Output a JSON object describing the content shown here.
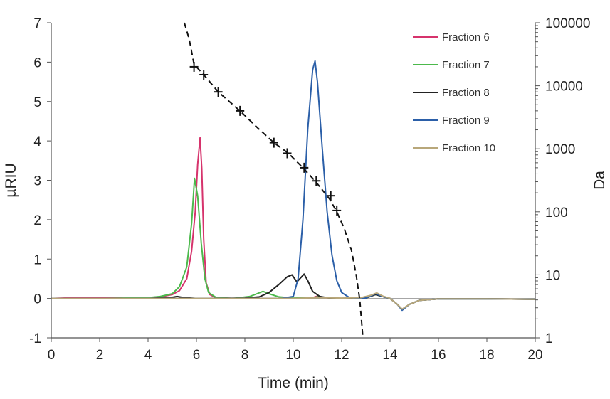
{
  "chart_data": {
    "type": "line",
    "xlabel": "Time (min)",
    "ylabel": "µRIU",
    "y2label": "Da",
    "xlim": [
      0,
      20
    ],
    "ylim": [
      -1,
      7
    ],
    "y2lim": [
      1,
      100000
    ],
    "y2scale": "log",
    "xticks": [
      "0",
      "2",
      "4",
      "6",
      "8",
      "10",
      "12",
      "14",
      "16",
      "18",
      "20"
    ],
    "yticks": [
      "-1",
      "0",
      "1",
      "2",
      "3",
      "4",
      "5",
      "6",
      "7"
    ],
    "y2ticks": [
      "1",
      "10",
      "100",
      "1000",
      "10000",
      "100000"
    ],
    "grid": false,
    "legend_position": "top-right",
    "series": [
      {
        "name": "Fraction 6",
        "color": "#d6336c",
        "points": [
          [
            0,
            0.0
          ],
          [
            1,
            0.02
          ],
          [
            2,
            0.03
          ],
          [
            3,
            0.01
          ],
          [
            4,
            0.02
          ],
          [
            4.5,
            0.04
          ],
          [
            5,
            0.1
          ],
          [
            5.3,
            0.2
          ],
          [
            5.6,
            0.5
          ],
          [
            5.8,
            1.2
          ],
          [
            5.95,
            2.2
          ],
          [
            6.05,
            3.4
          ],
          [
            6.15,
            4.08
          ],
          [
            6.22,
            3.3
          ],
          [
            6.3,
            1.5
          ],
          [
            6.4,
            0.4
          ],
          [
            6.55,
            0.1
          ],
          [
            6.8,
            0.02
          ],
          [
            7.5,
            0.0
          ],
          [
            9,
            0.0
          ],
          [
            10,
            0.0
          ],
          [
            10.8,
            0.02
          ],
          [
            11,
            0.06
          ],
          [
            11.3,
            0.02
          ],
          [
            12,
            0.0
          ],
          [
            13,
            0.01
          ],
          [
            13.4,
            0.1
          ],
          [
            13.7,
            0.05
          ],
          [
            14,
            0.0
          ],
          [
            14.3,
            -0.15
          ],
          [
            14.5,
            -0.28
          ],
          [
            14.8,
            -0.15
          ],
          [
            15.2,
            -0.05
          ],
          [
            16,
            -0.01
          ],
          [
            18,
            -0.01
          ],
          [
            20,
            -0.02
          ]
        ]
      },
      {
        "name": "Fraction 7",
        "color": "#4cb94c",
        "points": [
          [
            0,
            0.0
          ],
          [
            2,
            0.0
          ],
          [
            4,
            0.02
          ],
          [
            4.5,
            0.05
          ],
          [
            5,
            0.12
          ],
          [
            5.3,
            0.3
          ],
          [
            5.6,
            0.8
          ],
          [
            5.8,
            1.9
          ],
          [
            5.92,
            3.05
          ],
          [
            6.05,
            2.6
          ],
          [
            6.2,
            1.4
          ],
          [
            6.35,
            0.5
          ],
          [
            6.5,
            0.15
          ],
          [
            6.8,
            0.03
          ],
          [
            7.5,
            0.0
          ],
          [
            8.2,
            0.05
          ],
          [
            8.5,
            0.12
          ],
          [
            8.75,
            0.18
          ],
          [
            9.0,
            0.12
          ],
          [
            9.4,
            0.04
          ],
          [
            10,
            0.01
          ],
          [
            10.8,
            0.02
          ],
          [
            11,
            0.04
          ],
          [
            11.4,
            0.02
          ],
          [
            12,
            0.0
          ],
          [
            13,
            0.01
          ],
          [
            13.4,
            0.1
          ],
          [
            13.7,
            0.05
          ],
          [
            14,
            0.0
          ],
          [
            14.3,
            -0.15
          ],
          [
            14.5,
            -0.28
          ],
          [
            14.8,
            -0.15
          ],
          [
            15.2,
            -0.05
          ],
          [
            16,
            -0.01
          ],
          [
            18,
            -0.01
          ],
          [
            20,
            -0.02
          ]
        ]
      },
      {
        "name": "Fraction 8",
        "color": "#222222",
        "points": [
          [
            0,
            0.0
          ],
          [
            2,
            0.0
          ],
          [
            4,
            0.0
          ],
          [
            5,
            0.03
          ],
          [
            5.2,
            0.05
          ],
          [
            5.5,
            0.02
          ],
          [
            6,
            0.0
          ],
          [
            8,
            0.01
          ],
          [
            8.6,
            0.04
          ],
          [
            9.0,
            0.15
          ],
          [
            9.4,
            0.35
          ],
          [
            9.75,
            0.55
          ],
          [
            9.95,
            0.6
          ],
          [
            10.15,
            0.42
          ],
          [
            10.3,
            0.52
          ],
          [
            10.45,
            0.62
          ],
          [
            10.6,
            0.45
          ],
          [
            10.8,
            0.18
          ],
          [
            11.1,
            0.05
          ],
          [
            11.5,
            0.01
          ],
          [
            12,
            0.0
          ],
          [
            13,
            0.01
          ],
          [
            13.4,
            0.1
          ],
          [
            13.7,
            0.05
          ],
          [
            14,
            0.0
          ],
          [
            14.3,
            -0.15
          ],
          [
            14.5,
            -0.28
          ],
          [
            14.8,
            -0.15
          ],
          [
            15.2,
            -0.05
          ],
          [
            16,
            -0.01
          ],
          [
            18,
            -0.01
          ],
          [
            20,
            -0.02
          ]
        ]
      },
      {
        "name": "Fraction 9",
        "color": "#2b5fa8",
        "points": [
          [
            0,
            0.0
          ],
          [
            2,
            0.0
          ],
          [
            4,
            0.0
          ],
          [
            6,
            0.0
          ],
          [
            8,
            0.0
          ],
          [
            9.5,
            0.0
          ],
          [
            10.0,
            0.05
          ],
          [
            10.2,
            0.5
          ],
          [
            10.4,
            2.0
          ],
          [
            10.6,
            4.3
          ],
          [
            10.8,
            5.8
          ],
          [
            10.9,
            6.03
          ],
          [
            11.0,
            5.5
          ],
          [
            11.2,
            3.8
          ],
          [
            11.4,
            2.2
          ],
          [
            11.6,
            1.1
          ],
          [
            11.8,
            0.45
          ],
          [
            12.0,
            0.15
          ],
          [
            12.3,
            0.03
          ],
          [
            12.6,
            0.0
          ],
          [
            13,
            0.01
          ],
          [
            13.4,
            0.12
          ],
          [
            13.7,
            0.05
          ],
          [
            14,
            0.0
          ],
          [
            14.3,
            -0.15
          ],
          [
            14.5,
            -0.3
          ],
          [
            14.8,
            -0.15
          ],
          [
            15.2,
            -0.05
          ],
          [
            16,
            -0.01
          ],
          [
            18,
            -0.01
          ],
          [
            20,
            -0.02
          ]
        ]
      },
      {
        "name": "Fraction 10",
        "color": "#b8a77a",
        "points": [
          [
            0,
            0.0
          ],
          [
            2,
            0.0
          ],
          [
            4,
            0.0
          ],
          [
            6,
            0.0
          ],
          [
            8,
            0.0
          ],
          [
            10,
            0.0
          ],
          [
            11,
            0.02
          ],
          [
            12,
            0.01
          ],
          [
            12.8,
            0.02
          ],
          [
            13.2,
            0.08
          ],
          [
            13.45,
            0.14
          ],
          [
            13.7,
            0.06
          ],
          [
            14,
            0.0
          ],
          [
            14.3,
            -0.15
          ],
          [
            14.5,
            -0.27
          ],
          [
            14.8,
            -0.15
          ],
          [
            15.2,
            -0.05
          ],
          [
            16,
            -0.01
          ],
          [
            18,
            -0.01
          ],
          [
            20,
            -0.02
          ]
        ]
      }
    ],
    "calibration": {
      "axis": "y2",
      "line_style": "dashed",
      "color": "#111111",
      "curve": [
        [
          5.5,
          100000
        ],
        [
          5.7,
          55000
        ],
        [
          5.9,
          22000
        ],
        [
          6.3,
          15000
        ],
        [
          6.9,
          8000
        ],
        [
          7.8,
          4000
        ],
        [
          8.5,
          2200
        ],
        [
          9.2,
          1250
        ],
        [
          9.8,
          850
        ],
        [
          10.4,
          500
        ],
        [
          10.9,
          310
        ],
        [
          11.5,
          160
        ],
        [
          11.8,
          100
        ],
        [
          12.1,
          55
        ],
        [
          12.4,
          25
        ],
        [
          12.6,
          10
        ],
        [
          12.75,
          4
        ],
        [
          12.88,
          1
        ]
      ],
      "markers": [
        [
          5.9,
          20000
        ],
        [
          6.3,
          15000
        ],
        [
          6.9,
          8000
        ],
        [
          7.8,
          4000
        ],
        [
          9.2,
          1250
        ],
        [
          9.75,
          850
        ],
        [
          10.45,
          500
        ],
        [
          10.95,
          310
        ],
        [
          11.55,
          180
        ],
        [
          11.8,
          105
        ]
      ]
    }
  }
}
